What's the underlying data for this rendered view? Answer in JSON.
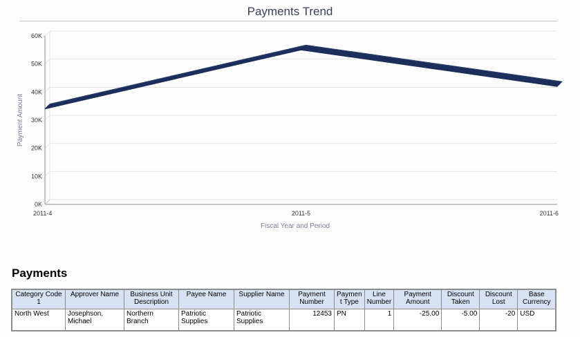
{
  "chart_data": {
    "type": "line",
    "title": "Payments Trend",
    "xlabel": "Fiscal Year and Period",
    "ylabel": "Payment Amount",
    "categories": [
      "2011-4",
      "2011-5",
      "2011-6"
    ],
    "series": [
      {
        "name": "Payment Amount",
        "values": [
          34000,
          55000,
          42000
        ],
        "color": "#1c2f5c"
      }
    ],
    "ylim": [
      0,
      60000
    ],
    "yticks": [
      0,
      10000,
      20000,
      30000,
      40000,
      50000,
      60000
    ],
    "ytick_labels": [
      "0K",
      "10K",
      "20K",
      "30K",
      "40K",
      "50K",
      "60K"
    ],
    "grid": true
  },
  "table": {
    "title": "Payments",
    "columns": [
      "Category Code 1",
      "Approver Name",
      "Business Unit Description",
      "Payee Name",
      "Supplier Name",
      "Payment Number",
      "Paymen t Type",
      "Line Number",
      "Payment Amount",
      "Discount Taken",
      "Discount Lost",
      "Base Currency"
    ],
    "rows": [
      [
        "North West",
        "Josephson, Michael",
        "Northern Branch",
        "Patriotic Supplies",
        "Patriotic Supplies",
        "12453",
        "PN",
        "1",
        "-25.00",
        "-5.00",
        "-20",
        "USD"
      ]
    ],
    "header_bg": "#d7e2f4"
  }
}
